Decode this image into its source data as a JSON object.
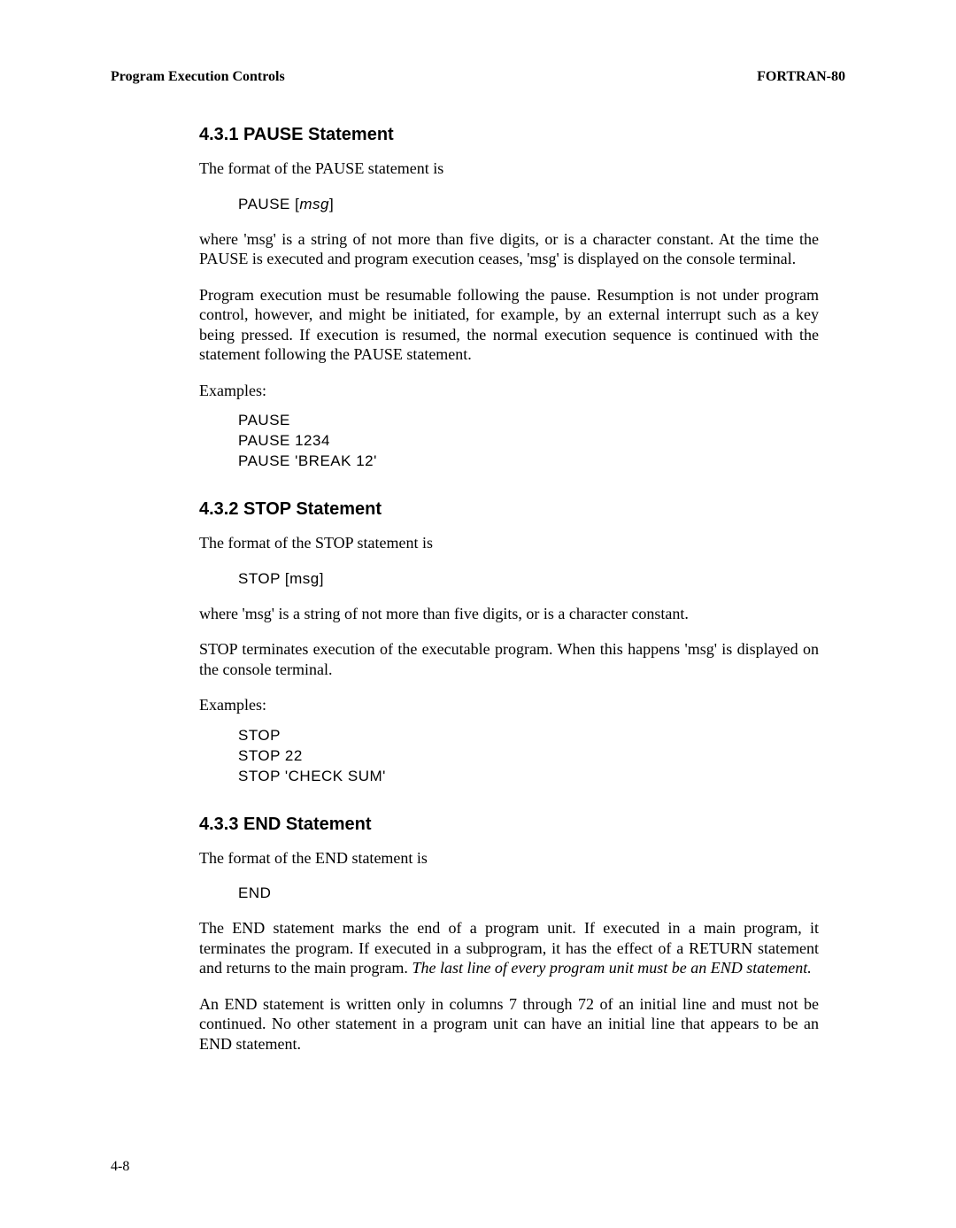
{
  "header": {
    "left": "Program Execution Controls",
    "right": "FORTRAN-80"
  },
  "sections": {
    "pause": {
      "heading": "4.3.1  PAUSE Statement",
      "intro": "The format of the PAUSE statement is",
      "syntax_kw": "PAUSE [",
      "syntax_arg": "msg",
      "syntax_close": "]",
      "p1": "where 'msg' is a string of not more than five digits, or is a character constant. At the time the PAUSE is executed and program execution ceases, 'msg' is displayed on the console terminal.",
      "p2": "Program execution must be resumable following the pause. Resumption is not under program control, however, and might be initiated, for example, by an external interrupt such as a key being pressed. If execution is resumed, the normal execution sequence is continued with the statement following the PAUSE statement.",
      "examples_label": "Examples:",
      "ex1": "PAUSE",
      "ex2": "PAUSE 1234",
      "ex3": "PAUSE 'BREAK 12'"
    },
    "stop": {
      "heading": "4.3.2  STOP Statement",
      "intro": "The format of the STOP statement is",
      "syntax": "STOP [msg]",
      "p1": "where 'msg' is a string of not more than five digits, or is a character constant.",
      "p2": "STOP terminates execution of the executable program. When this happens 'msg' is displayed on the console terminal.",
      "examples_label": "Examples:",
      "ex1": "STOP",
      "ex2": "STOP 22",
      "ex3": "STOP 'CHECK  SUM'"
    },
    "end": {
      "heading": "4.3.3  END Statement",
      "intro": "The format of the END statement is",
      "syntax": "END",
      "p1a": "The END statement marks the end of a program unit. If executed in a main program, it terminates the program. If executed in a subprogram, it has the effect of a RETURN statement and returns to the main program. ",
      "p1b": "The last line of every program unit must be an END statement.",
      "p2": "An END statement is written only in columns 7 through 72 of an initial line and must not be continued. No other statement in a program unit can have an initial line that appears to be an END statement."
    }
  },
  "page_number": "4-8"
}
